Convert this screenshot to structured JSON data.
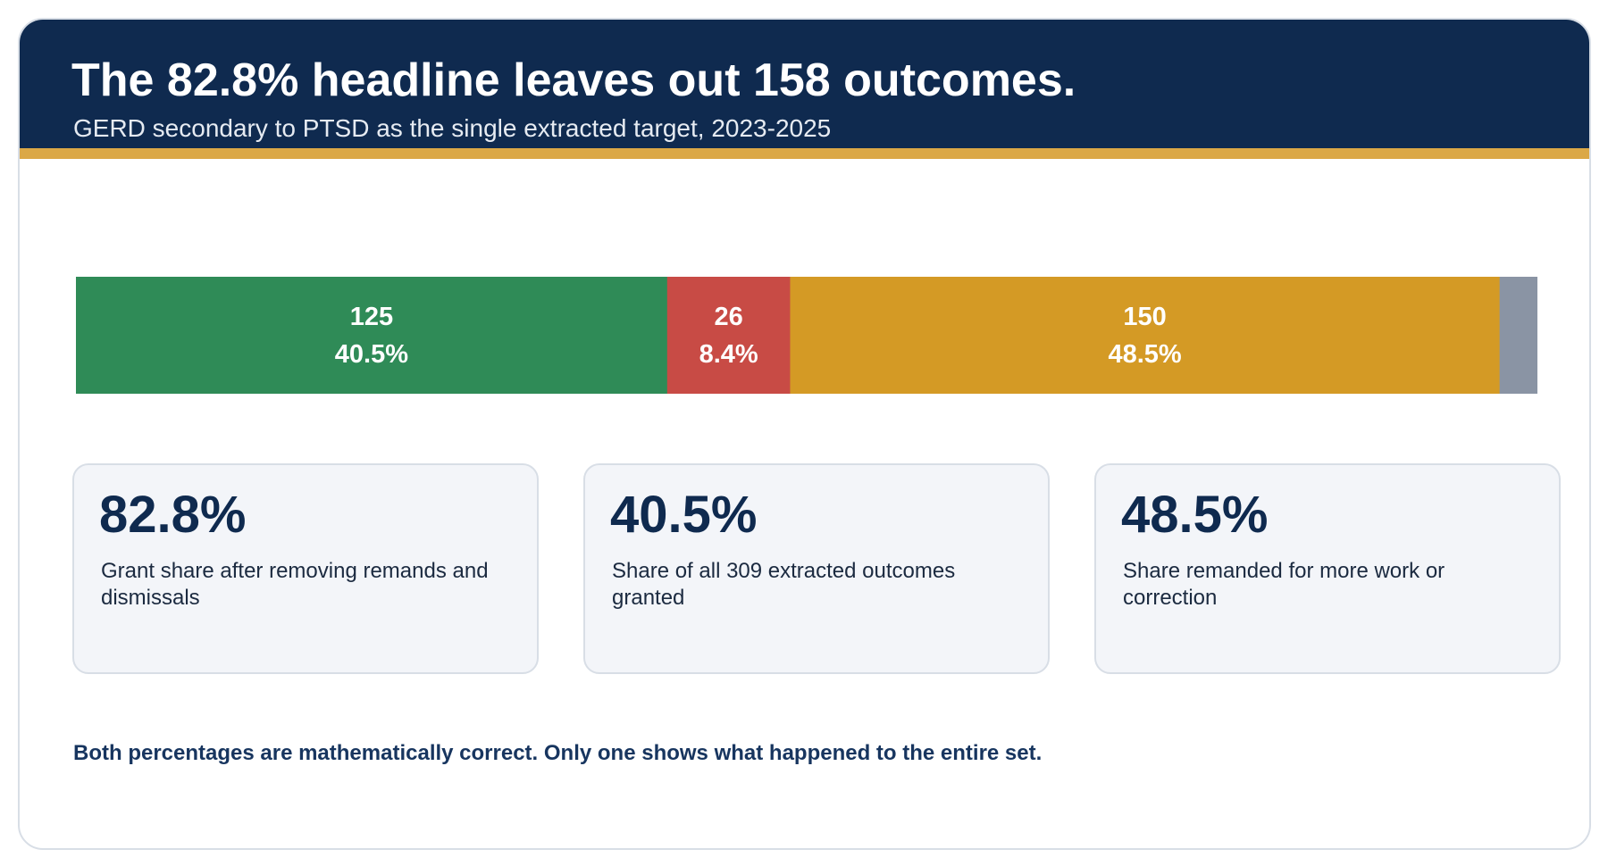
{
  "header": {
    "title": "The 82.8% headline leaves out 158 outcomes.",
    "subtitle": "GERD secondary to PTSD as the single extracted target, 2023-2025"
  },
  "chart_data": {
    "type": "bar",
    "orientation": "horizontal-stacked",
    "total": 309,
    "segments": [
      {
        "value": 125,
        "count_label": "125",
        "percent_label": "40.5%",
        "color": "#2f8b57"
      },
      {
        "value": 26,
        "count_label": "26",
        "percent_label": "8.4%",
        "color": "#c84b45"
      },
      {
        "value": 150,
        "count_label": "150",
        "percent_label": "48.5%",
        "color": "#d49a25"
      },
      {
        "value": 8,
        "count_label": "",
        "percent_label": "",
        "color": "#8a94a4"
      }
    ]
  },
  "stats": [
    {
      "value": "82.8%",
      "description": "Grant share after removing remands and dismissals"
    },
    {
      "value": "40.5%",
      "description": "Share of all 309 extracted outcomes granted"
    },
    {
      "value": "48.5%",
      "description": "Share remanded for more work or correction"
    }
  ],
  "footnote": "Both percentages are mathematically correct. Only one shows what happened to the entire set.",
  "colors": {
    "header_bg": "#0f2a4f",
    "accent": "#dba847",
    "text_dark": "#0f2a4f"
  }
}
